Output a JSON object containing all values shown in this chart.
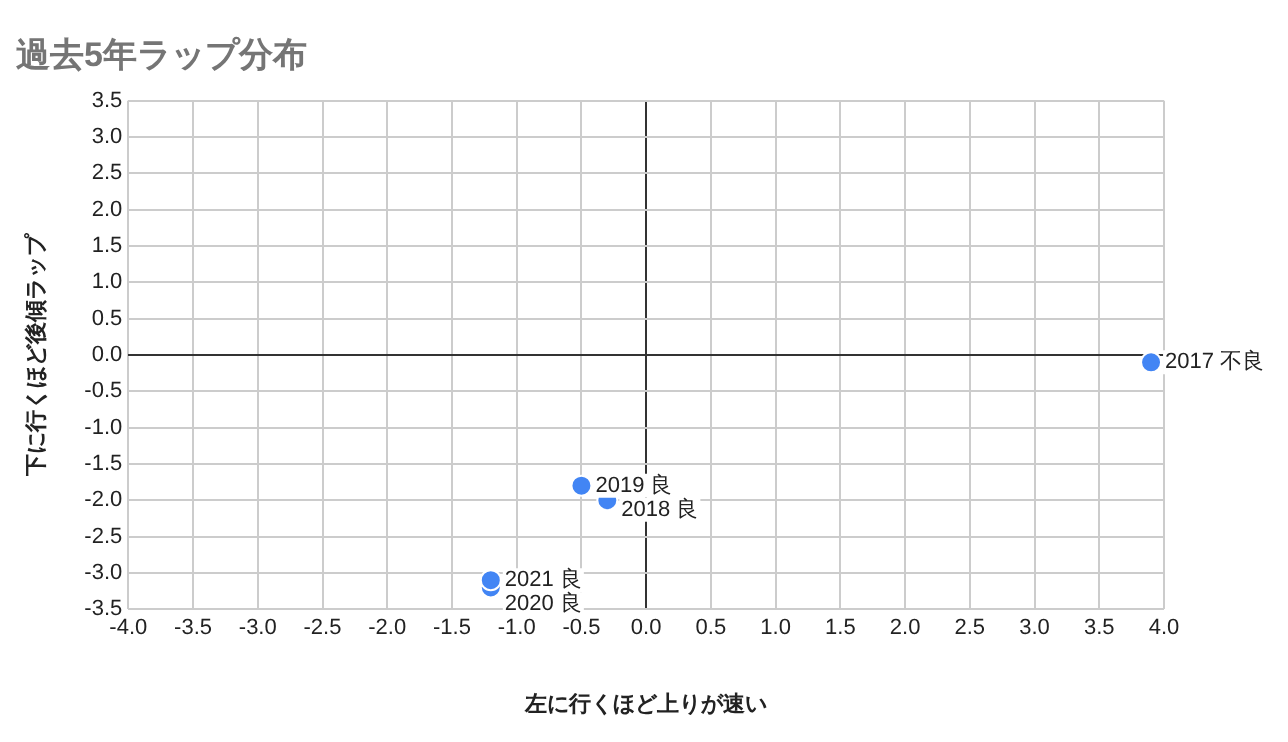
{
  "chart_data": {
    "type": "scatter",
    "title": "過去5年ラップ分布",
    "xlabel": "左に行くほど上りが速い",
    "ylabel": "下に行くほど後傾ラップ",
    "x": [
      3.9,
      -0.3,
      -0.5,
      -1.2,
      -1.2
    ],
    "series": [
      {
        "color": "#4285f4",
        "values": [
          -0.1,
          -2.0,
          -1.8,
          -3.2,
          -3.1
        ]
      }
    ],
    "annotations": [
      {
        "text": "2017 不良",
        "x": 3.9,
        "y": -0.1
      },
      {
        "text": "2018 良",
        "x": -0.3,
        "y": -2.0
      },
      {
        "text": "2019 良",
        "x": -0.5,
        "y": -1.8
      },
      {
        "text": "2020 良",
        "x": -1.2,
        "y": -3.2
      },
      {
        "text": "2021 良",
        "x": -1.2,
        "y": -3.1
      }
    ],
    "xlim": [
      -4,
      4
    ],
    "xticks": [
      {
        "value": -4,
        "label": "-4.0"
      },
      {
        "value": -3.5,
        "label": "-3.5"
      },
      {
        "value": -3,
        "label": "-3.0"
      },
      {
        "value": -2.5,
        "label": "-2.5"
      },
      {
        "value": -2,
        "label": "-2.0"
      },
      {
        "value": -1.5,
        "label": "-1.5"
      },
      {
        "value": -1,
        "label": "-1.0"
      },
      {
        "value": -0.5,
        "label": "-0.5"
      },
      {
        "value": 0,
        "label": "0.0"
      },
      {
        "value": 0.5,
        "label": "0.5"
      },
      {
        "value": 1,
        "label": "1.0"
      },
      {
        "value": 1.5,
        "label": "1.5"
      },
      {
        "value": 2,
        "label": "2.0"
      },
      {
        "value": 2.5,
        "label": "2.5"
      },
      {
        "value": 3,
        "label": "3.0"
      },
      {
        "value": 3.5,
        "label": "3.5"
      },
      {
        "value": 4,
        "label": "4.0"
      }
    ],
    "ylim": [
      -3.5,
      3.5
    ],
    "yticks": [
      {
        "value": -3.5,
        "label": "-3.5"
      },
      {
        "value": -3,
        "label": "-3.0"
      },
      {
        "value": -2.5,
        "label": "-2.5"
      },
      {
        "value": -2,
        "label": "-2.0"
      },
      {
        "value": -1.5,
        "label": "-1.5"
      },
      {
        "value": -1,
        "label": "-1.0"
      },
      {
        "value": -0.5,
        "label": "-0.5"
      },
      {
        "value": 0,
        "label": "0.0"
      },
      {
        "value": 0.5,
        "label": "0.5"
      },
      {
        "value": 1,
        "label": "1.0"
      },
      {
        "value": 1.5,
        "label": "1.5"
      },
      {
        "value": 2,
        "label": "2.0"
      },
      {
        "value": 2.5,
        "label": "2.5"
      },
      {
        "value": 3,
        "label": "3.0"
      },
      {
        "value": 3.5,
        "label": "3.5"
      }
    ],
    "grid": true,
    "legend": false,
    "marker": "circle"
  }
}
